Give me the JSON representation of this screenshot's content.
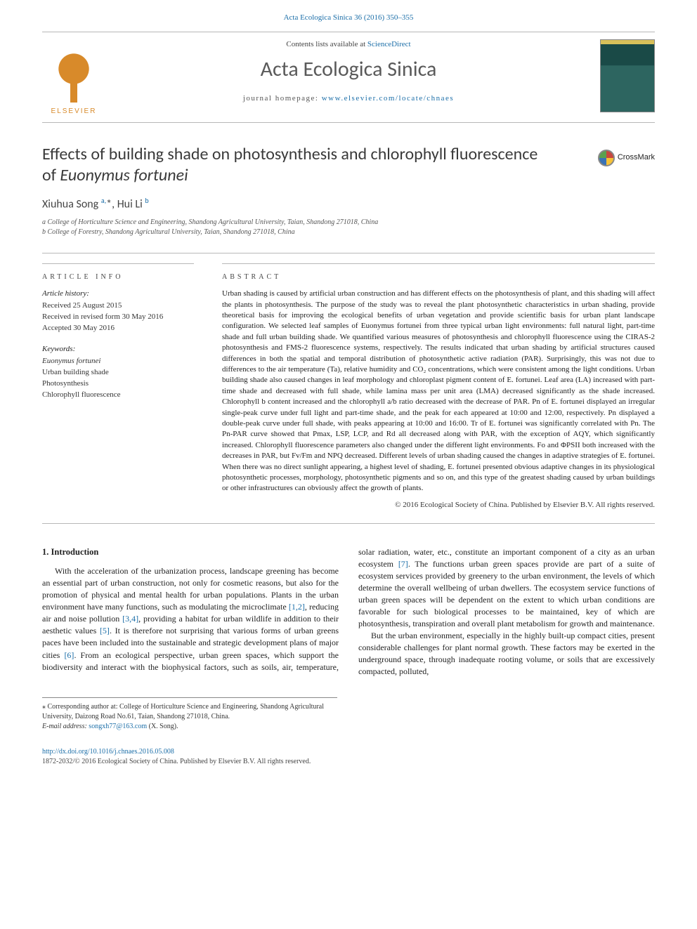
{
  "top_link": "Acta Ecologica Sinica 36 (2016) 350–355",
  "header": {
    "contents_prefix": "Contents lists available at ",
    "contents_link": "ScienceDirect",
    "journal": "Acta Ecologica Sinica",
    "homepage_prefix": "journal homepage: ",
    "homepage_url": "www.elsevier.com/locate/chnaes",
    "elsevier": "ELSEVIER"
  },
  "title_line1": "Effects of building shade on photosynthesis and chlorophyll fluorescence",
  "title_line2": "of ",
  "title_species": "Euonymus fortunei",
  "crossmark": "CrossMark",
  "authors_html": "Xiuhua Song <sup>a,</sup>*, Hui Li <sup>b</sup>",
  "affiliations": {
    "a": "a  College of Horticulture Science and Engineering, Shandong Agricultural University, Taian, Shandong 271018, China",
    "b": "b  College of Forestry, Shandong Agricultural University, Taian, Shandong 271018, China"
  },
  "article_info": {
    "label": "ARTICLE INFO",
    "history_head": "Article history:",
    "received": "Received 25 August 2015",
    "revised": "Received in revised form 30 May 2016",
    "accepted": "Accepted 30 May 2016",
    "keywords_head": "Keywords:",
    "keywords": [
      "Euonymus fortunei",
      "Urban building shade",
      "Photosynthesis",
      "Chlorophyll fluorescence"
    ]
  },
  "abstract": {
    "label": "ABSTRACT",
    "text": "Urban shading is caused by artificial urban construction and has different effects on the photosynthesis of plant, and this shading will affect the plants in photosynthesis. The purpose of the study was to reveal the plant photosynthetic characteristics in urban shading, provide theoretical basis for improving the ecological benefits of urban vegetation and provide scientific basis for urban plant landscape configuration. We selected leaf samples of Euonymus fortunei from three typical urban light environments: full natural light, part-time shade and full urban building shade. We quantified various measures of photosynthesis and chlorophyll fluorescence using the CIRAS-2 photosynthesis and FMS-2 fluorescence systems, respectively. The results indicated that urban shading by artificial structures caused differences in both the spatial and temporal distribution of photosynthetic active radiation (PAR). Surprisingly, this was not due to differences to the air temperature (Ta), relative humidity and CO₂ concentrations, which were consistent among the light conditions. Urban building shade also caused changes in leaf morphology and chloroplast pigment content of E. fortunei. Leaf area (LA) increased with part-time shade and decreased with full shade, while lamina mass per unit area (LMA) decreased significantly as the shade increased. Chlorophyll b content increased and the chlorophyll a/b ratio decreased with the decrease of PAR. Pn of E. fortunei displayed an irregular single-peak curve under full light and part-time shade, and the peak for each appeared at 10:00 and 12:00, respectively. Pn displayed a double-peak curve under full shade, with peaks appearing at 10:00 and 16:00. Tr of E. fortunei was significantly correlated with Pn. The Pn-PAR curve showed that Pmax, LSP, LCP, and Rd all decreased along with PAR, with the exception of AQY, which significantly increased. Chlorophyll fluorescence parameters also changed under the different light environments. Fo and ΦPSII both increased with the decreases in PAR, but Fv/Fm and NPQ decreased. Different levels of urban shading caused the changes in adaptive strategies of E. fortunei. When there was no direct sunlight appearing, a highest level of shading, E. fortunei presented obvious adaptive changes in its physiological photosynthetic processes, morphology, photosynthetic pigments and so on, and this type of the greatest shading caused by urban buildings or other infrastructures can obviously affect the growth of plants.",
    "copyright": "© 2016 Ecological Society of China. Published by Elsevier B.V. All rights reserved."
  },
  "body": {
    "heading": "1. Introduction",
    "p1a": "With the acceleration of the urbanization process, landscape greening has become an essential part of urban construction, not only for cosmetic reasons, but also for the promotion of physical and mental health for urban populations. Plants in the urban environment have many functions, such as modulating the microclimate ",
    "r1": "[1,2]",
    "p1b": ", reducing air and noise pollution ",
    "r2": "[3,4]",
    "p1c": ", providing a habitat for urban wildlife in addition to their aesthetic values ",
    "r3": "[5]",
    "p1d": ". It is therefore not surprising that various forms of urban greens paces have been included into the sustainable and strategic development plans of major cities ",
    "r4": "[6]",
    "p1e": ". From an ecological perspective, urban green spaces, which support the biodiversity and interact with the biophysical factors, such as soils, air, temperature, solar radiation, water, etc., constitute an important component of a city as an urban ecosystem ",
    "r5": "[7]",
    "p1f": ". The functions urban green spaces provide are part of a suite of ecosystem services provided by greenery to the urban environment, the levels of which determine the overall wellbeing of urban dwellers. The ecosystem service functions of urban green spaces will be dependent on the extent to which urban conditions are favorable for such biological processes to be maintained, key of which are photosynthesis, transpiration and overall plant metabolism for growth and maintenance.",
    "p2": "But the urban environment, especially in the highly built-up compact cities, present considerable challenges for plant normal growth. These factors may be exerted in the underground space, through inadequate rooting volume, or soils that are excessively compacted, polluted,"
  },
  "corr": {
    "star": "⁎  Corresponding author at: College of Horticulture Science and Engineering, Shandong Agricultural University, Daizong Road No.61, Taian, Shandong 271018, China.",
    "email_label": "E-mail address: ",
    "email": "songxh77@163.com",
    "email_suffix": " (X. Song)."
  },
  "footer": {
    "doi": "http://dx.doi.org/10.1016/j.chnaes.2016.05.008",
    "issn": "1872-2032/© 2016 Ecological Society of China. Published by Elsevier B.V. All rights reserved."
  },
  "colors": {
    "link": "#1b6ea8",
    "elsevier": "#d88a2a",
    "rule": "#b8b8b8"
  }
}
